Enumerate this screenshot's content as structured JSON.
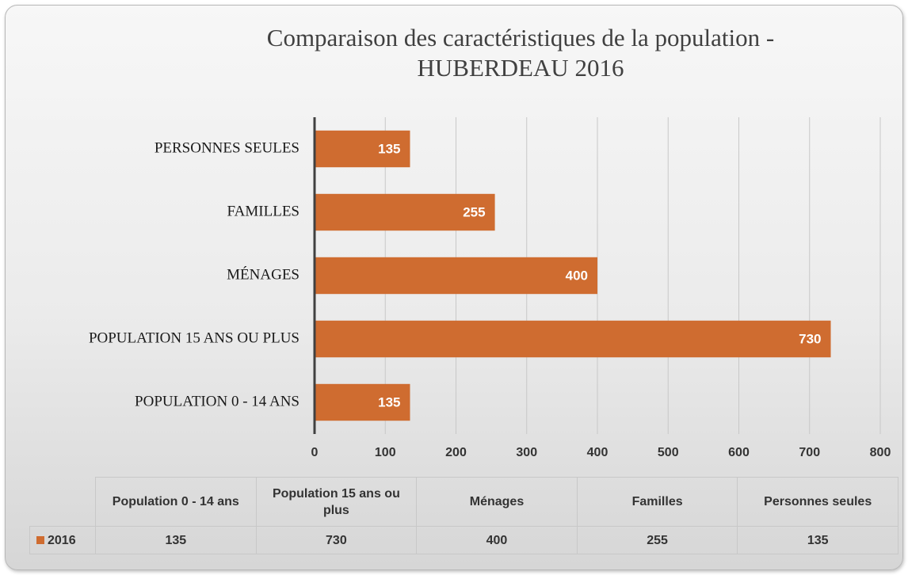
{
  "chart_data": {
    "type": "bar",
    "orientation": "horizontal",
    "title": "Comparaison des caractéristiques de la population - HUBERDEAU 2016",
    "categories": [
      "POPULATION 0 - 14 ANS",
      "POPULATION 15 ANS OU PLUS",
      "MÉNAGES",
      "FAMILLES",
      "PERSONNES SEULES"
    ],
    "series": [
      {
        "name": "2016",
        "color": "#cf6c30",
        "values": [
          135,
          730,
          400,
          255,
          135
        ]
      }
    ],
    "xlim": [
      0,
      800
    ],
    "xticks": [
      0,
      100,
      200,
      300,
      400,
      500,
      600,
      700,
      800
    ],
    "grid": true,
    "data_table": {
      "columns": [
        "Population 0 - 14 ans",
        "Population 15 ans ou plus",
        "Ménages",
        "Familles",
        "Personnes seules"
      ]
    }
  }
}
